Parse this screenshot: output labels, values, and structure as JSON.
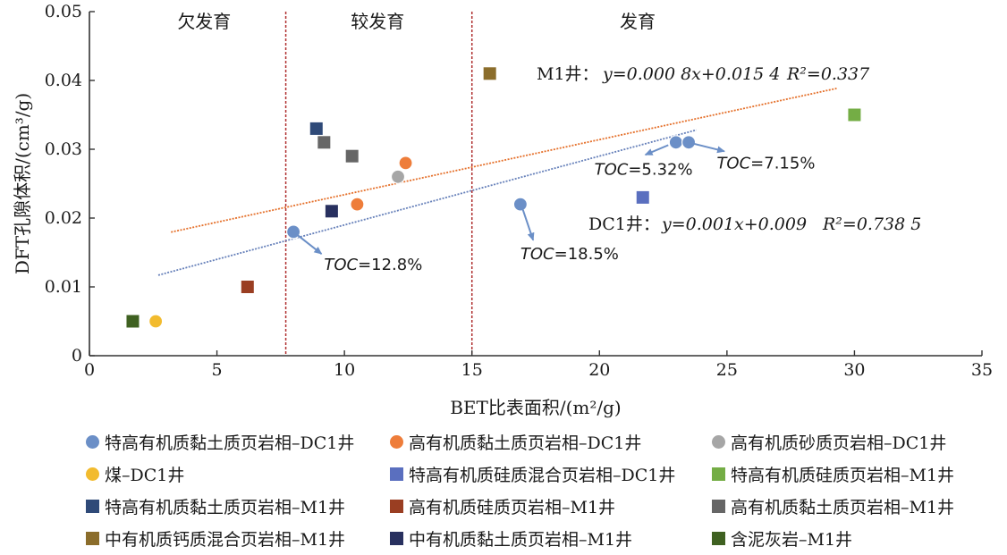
{
  "chart_data": {
    "type": "scatter",
    "xlabel": "BET比表面积/(m²/g)",
    "ylabel": "DFT孔隙体积/(cm³/g)",
    "xlim": [
      0,
      35
    ],
    "ylim": [
      0,
      0.05
    ],
    "xticks": [
      "0",
      "5",
      "10",
      "15",
      "20",
      "25",
      "30",
      "35"
    ],
    "yticks": [
      "0",
      "0.01",
      "0.02",
      "0.03",
      "0.04",
      "0.05"
    ],
    "grid": false,
    "legend_position": "bottom",
    "zones": [
      {
        "label": "欠发育",
        "x_center": 4.5
      },
      {
        "label": "较发育",
        "x_center": 11.3
      },
      {
        "label": "发育",
        "x_center": 21.5
      }
    ],
    "zone_boundaries": [
      7.7,
      15
    ],
    "series": [
      {
        "name": "特高有机质黏土质页岩相–DC1井",
        "marker": "circle",
        "color": "#6b8fc7",
        "points": [
          [
            8.0,
            0.018
          ],
          [
            16.9,
            0.022
          ],
          [
            23.0,
            0.031
          ],
          [
            23.5,
            0.031
          ]
        ]
      },
      {
        "name": "高有机质黏土质页岩相–DC1井",
        "marker": "circle",
        "color": "#ee7d3a",
        "points": [
          [
            10.5,
            0.022
          ],
          [
            12.4,
            0.028
          ]
        ]
      },
      {
        "name": "高有机质砂质页岩相–DC1井",
        "marker": "circle",
        "color": "#a6a6a6",
        "points": [
          [
            12.1,
            0.026
          ]
        ]
      },
      {
        "name": "煤–DC1井",
        "marker": "circle",
        "color": "#f2bb2e",
        "points": [
          [
            2.6,
            0.005
          ]
        ]
      },
      {
        "name": "特高有机质硅质混合页岩相–DC1井",
        "marker": "square",
        "color": "#5a6fbf",
        "points": [
          [
            21.7,
            0.023
          ]
        ]
      },
      {
        "name": "特高有机质硅质页岩相–M1井",
        "marker": "square",
        "color": "#74ad45",
        "points": [
          [
            30.0,
            0.035
          ]
        ]
      },
      {
        "name": "特高有机质黏土质页岩相–M1井",
        "marker": "square",
        "color": "#2f4a78",
        "points": [
          [
            8.9,
            0.033
          ]
        ]
      },
      {
        "name": "高有机质硅质页岩相–M1井",
        "marker": "square",
        "color": "#9a3e22",
        "points": [
          [
            6.2,
            0.01
          ]
        ]
      },
      {
        "name": "高有机质黏土质页岩相–M1井",
        "marker": "square",
        "color": "#666666",
        "points": [
          [
            9.2,
            0.031
          ],
          [
            10.3,
            0.029
          ]
        ]
      },
      {
        "name": "中有机质钙质混合页岩相–M1井",
        "marker": "square",
        "color": "#8b6d2b",
        "points": [
          [
            15.7,
            0.041
          ]
        ]
      },
      {
        "name": "中有机质黏土质页岩相–M1井",
        "marker": "square",
        "color": "#28305f",
        "points": [
          [
            9.5,
            0.021
          ]
        ]
      },
      {
        "name": "含泥灰岩–M1井",
        "marker": "square",
        "color": "#3f6121",
        "points": [
          [
            1.7,
            0.005
          ]
        ]
      }
    ],
    "trendlines": [
      {
        "well": "M1",
        "color": "#e5712c",
        "x_range": [
          3.2,
          29.3
        ],
        "slope": 0.0008,
        "intercept": 0.0154,
        "equation_prefix": "M1井：",
        "equation": "y=0.000 8x+0.015 4",
        "r2": "R²=0.337"
      },
      {
        "well": "DC1",
        "color": "#6781ba",
        "x_range": [
          2.7,
          23.8
        ],
        "slope": 0.001,
        "intercept": 0.009,
        "equation_prefix": "DC1井：",
        "equation": "y=0.001x+0.009",
        "r2": "R²=0.738 5"
      }
    ],
    "annotations": [
      {
        "text": "TOC=12.8%",
        "from": [
          8.1,
          0.0177
        ],
        "to": [
          9.1,
          0.0148
        ],
        "label_at": [
          9.2,
          0.0125
        ]
      },
      {
        "text": "TOC=18.5%",
        "from": [
          17.0,
          0.0212
        ],
        "to": [
          17.4,
          0.0168
        ],
        "label_at": [
          16.9,
          0.014
        ]
      },
      {
        "text": "TOC=5.32%",
        "from": [
          22.7,
          0.0306
        ],
        "to": [
          21.8,
          0.0292
        ],
        "label_at": [
          19.8,
          0.0263
        ]
      },
      {
        "text": "TOC=7.15%",
        "from": [
          23.7,
          0.0308
        ],
        "to": [
          24.9,
          0.0297
        ],
        "label_at": [
          24.6,
          0.0272
        ]
      }
    ]
  }
}
